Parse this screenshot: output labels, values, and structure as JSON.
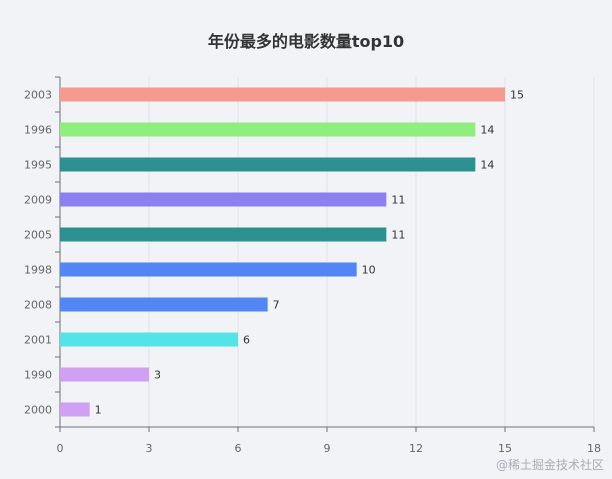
{
  "chart_data": {
    "type": "bar",
    "orientation": "horizontal",
    "title": "年份最多的电影数量top10",
    "categories": [
      "2003",
      "1996",
      "1995",
      "2009",
      "2005",
      "1998",
      "2008",
      "2001",
      "1990",
      "2000"
    ],
    "values": [
      15,
      14,
      14,
      11,
      11,
      10,
      7,
      6,
      3,
      1
    ],
    "colors": [
      "#f59a8f",
      "#90ee7e",
      "#2b908f",
      "#8c7fef",
      "#2b908f",
      "#5186f4",
      "#5186f4",
      "#54e4e8",
      "#d0a1f2",
      "#d0a1f2"
    ],
    "xticks": [
      0,
      3,
      6,
      9,
      12,
      15,
      18
    ],
    "xlim": [
      0,
      18
    ],
    "grid": true
  },
  "watermark": "@稀土掘金技术社区"
}
